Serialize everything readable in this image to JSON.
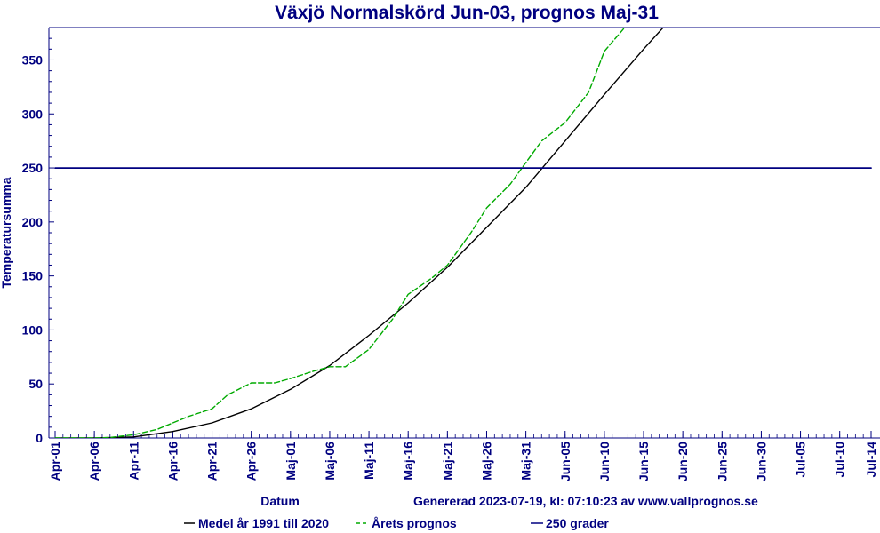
{
  "chart_data": {
    "type": "line",
    "title": "Växjö Normalskörd Jun-03, prognos Maj-31",
    "xlabel": "Datum",
    "ylabel": "Temperatursumma",
    "generated_note": "Genererad 2023-07-19, kl: 07:10:23 av www.vallprognos.se",
    "x_ticks": [
      "Apr-01",
      "Apr-06",
      "Apr-11",
      "Apr-16",
      "Apr-21",
      "Apr-26",
      "Maj-01",
      "Maj-06",
      "Maj-11",
      "Maj-16",
      "Maj-21",
      "Maj-26",
      "Maj-31",
      "Jun-05",
      "Jun-10",
      "Jun-15",
      "Jun-20",
      "Jun-25",
      "Jun-30",
      "Jul-05",
      "Jul-10",
      "Jul-14"
    ],
    "y_ticks": [
      0,
      50,
      100,
      150,
      200,
      250,
      300,
      350
    ],
    "ylim": [
      0,
      380
    ],
    "grid": false,
    "legend_position": "bottom",
    "colors": {
      "axis": "#000080",
      "text": "#000080",
      "normal": "#000000",
      "forecast": "#00aa00",
      "threshold": "#000080"
    },
    "series": [
      {
        "name": "Medel år 1991 till 2020",
        "style": "solid",
        "x": [
          "Apr-01",
          "Apr-06",
          "Apr-11",
          "Apr-16",
          "Apr-21",
          "Apr-26",
          "Maj-01",
          "Maj-06",
          "Maj-11",
          "Maj-16",
          "Maj-21",
          "Maj-26",
          "Maj-31",
          "Jun-05",
          "Jun-10",
          "Jun-15",
          "Jun-18"
        ],
        "values": [
          0,
          0,
          1,
          6,
          14,
          27,
          45,
          67,
          95,
          125,
          158,
          195,
          232,
          275,
          318,
          360,
          384
        ]
      },
      {
        "name": "Årets prognos",
        "style": "dashed",
        "x": [
          "Apr-01",
          "Apr-06",
          "Apr-08",
          "Apr-11",
          "Apr-14",
          "Apr-16",
          "Apr-18",
          "Apr-21",
          "Apr-23",
          "Apr-26",
          "Apr-29",
          "Maj-01",
          "Maj-04",
          "Maj-06",
          "Maj-08",
          "Maj-11",
          "Maj-14",
          "Maj-16",
          "Maj-19",
          "Maj-21",
          "Maj-24",
          "Maj-26",
          "Maj-29",
          "Maj-31",
          "Jun-02",
          "Jun-05",
          "Jun-08",
          "Jun-10",
          "Jun-12",
          "Jun-14"
        ],
        "values": [
          0,
          0,
          0.5,
          3,
          8,
          14,
          20,
          27,
          40,
          51,
          51,
          55,
          62,
          66,
          66,
          82,
          110,
          133,
          148,
          160,
          190,
          213,
          235,
          255,
          275,
          292,
          320,
          358,
          375,
          392
        ]
      },
      {
        "name": "250 grader",
        "style": "solid",
        "x": [
          "Apr-01",
          "Jul-14"
        ],
        "values": [
          250,
          250
        ]
      }
    ]
  }
}
